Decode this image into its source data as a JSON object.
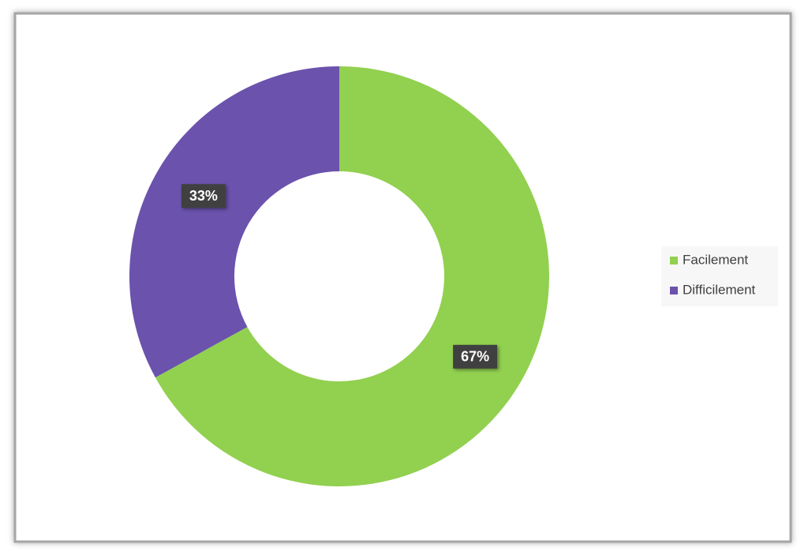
{
  "chart_data": {
    "type": "donut",
    "categories": [
      "Facilement",
      "Difficilement"
    ],
    "values": [
      67,
      33
    ],
    "value_labels": [
      "67%",
      "33%"
    ],
    "colors": [
      "#92d050",
      "#6b52ad"
    ],
    "legend": "right"
  }
}
